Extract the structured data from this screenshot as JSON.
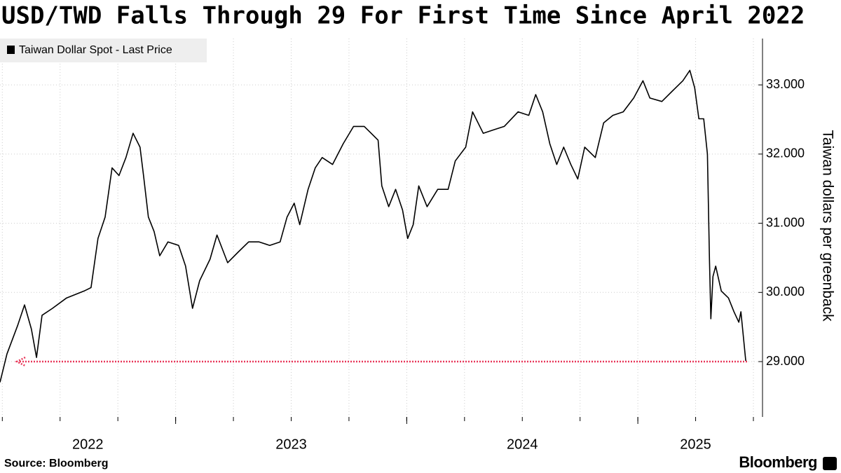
{
  "chart_data": {
    "type": "line",
    "title": "USD/TWD Falls Through 29 For First Time Since April 2022",
    "y_label": "Taiwan dollars per greenback",
    "source": "Source:  Bloomberg",
    "brand": "Bloomberg",
    "x": [
      2022.24,
      2022.27,
      2022.316,
      2022.346,
      2022.376,
      2022.398,
      2022.422,
      2022.467,
      2022.528,
      2022.604,
      2022.634,
      2022.664,
      2022.695,
      2022.725,
      2022.755,
      2022.785,
      2022.816,
      2022.846,
      2022.861,
      2022.882,
      2022.907,
      2022.931,
      2022.967,
      2023.013,
      2023.043,
      2023.073,
      2023.104,
      2023.149,
      2023.179,
      2023.225,
      2023.27,
      2023.316,
      2023.361,
      2023.407,
      2023.452,
      2023.482,
      2023.513,
      2023.537,
      2023.573,
      2023.604,
      2023.634,
      2023.679,
      2023.725,
      2023.77,
      2023.816,
      2023.846,
      2023.876,
      2023.892,
      2023.922,
      2023.952,
      2023.982,
      2024.004,
      2024.028,
      2024.052,
      2024.088,
      2024.134,
      2024.179,
      2024.21,
      2024.255,
      2024.285,
      2024.331,
      2024.376,
      2024.422,
      2024.482,
      2024.528,
      2024.558,
      2024.588,
      2024.619,
      2024.649,
      2024.679,
      2024.71,
      2024.74,
      2024.77,
      2024.816,
      2024.852,
      2024.892,
      2024.937,
      2024.982,
      2025.022,
      2025.052,
      2025.104,
      2025.149,
      2025.195,
      2025.225,
      2025.246,
      2025.264,
      2025.285,
      2025.301,
      2025.31,
      2025.316,
      2025.325,
      2025.337,
      2025.361,
      2025.392,
      2025.416,
      2025.437,
      2025.446,
      2025.467
    ],
    "series": [
      {
        "name": "Taiwan Dollar Spot - Last Price",
        "color": "#000000",
        "values": [
          28.7,
          29.11,
          29.52,
          29.82,
          29.47,
          29.06,
          29.67,
          29.77,
          29.92,
          30.02,
          30.07,
          30.78,
          31.09,
          31.8,
          31.69,
          31.95,
          32.3,
          32.1,
          31.69,
          31.09,
          30.88,
          30.53,
          30.73,
          30.68,
          30.38,
          29.77,
          30.17,
          30.48,
          30.83,
          30.43,
          30.58,
          30.73,
          30.73,
          30.68,
          30.73,
          31.09,
          31.29,
          30.98,
          31.49,
          31.8,
          31.95,
          31.85,
          32.15,
          32.4,
          32.4,
          32.3,
          32.2,
          31.54,
          31.24,
          31.49,
          31.19,
          30.78,
          30.98,
          31.54,
          31.24,
          31.49,
          31.49,
          31.9,
          32.1,
          32.61,
          32.3,
          32.35,
          32.4,
          32.61,
          32.56,
          32.86,
          32.61,
          32.15,
          31.85,
          32.1,
          31.85,
          31.64,
          32.1,
          31.95,
          32.45,
          32.56,
          32.61,
          32.81,
          33.06,
          32.81,
          32.76,
          32.91,
          33.06,
          33.21,
          32.96,
          32.51,
          32.51,
          32.0,
          30.48,
          29.62,
          30.23,
          30.38,
          30.02,
          29.92,
          29.72,
          29.57,
          29.72,
          29.01
        ]
      }
    ],
    "xlim": [
      2022.24,
      2025.5
    ],
    "xticks": [
      2022,
      2023,
      2024,
      2025
    ],
    "ylim": [
      28.2,
      33.67
    ],
    "yticks": [
      {
        "value": 29,
        "label": "29.000"
      },
      {
        "value": 30,
        "label": "30.000"
      },
      {
        "value": 31,
        "label": "31.000"
      },
      {
        "value": 32,
        "label": "32.000"
      },
      {
        "value": 33,
        "label": "33.000"
      }
    ],
    "reference_line": {
      "value": 29,
      "color": "#e8385a"
    },
    "grid": true
  }
}
